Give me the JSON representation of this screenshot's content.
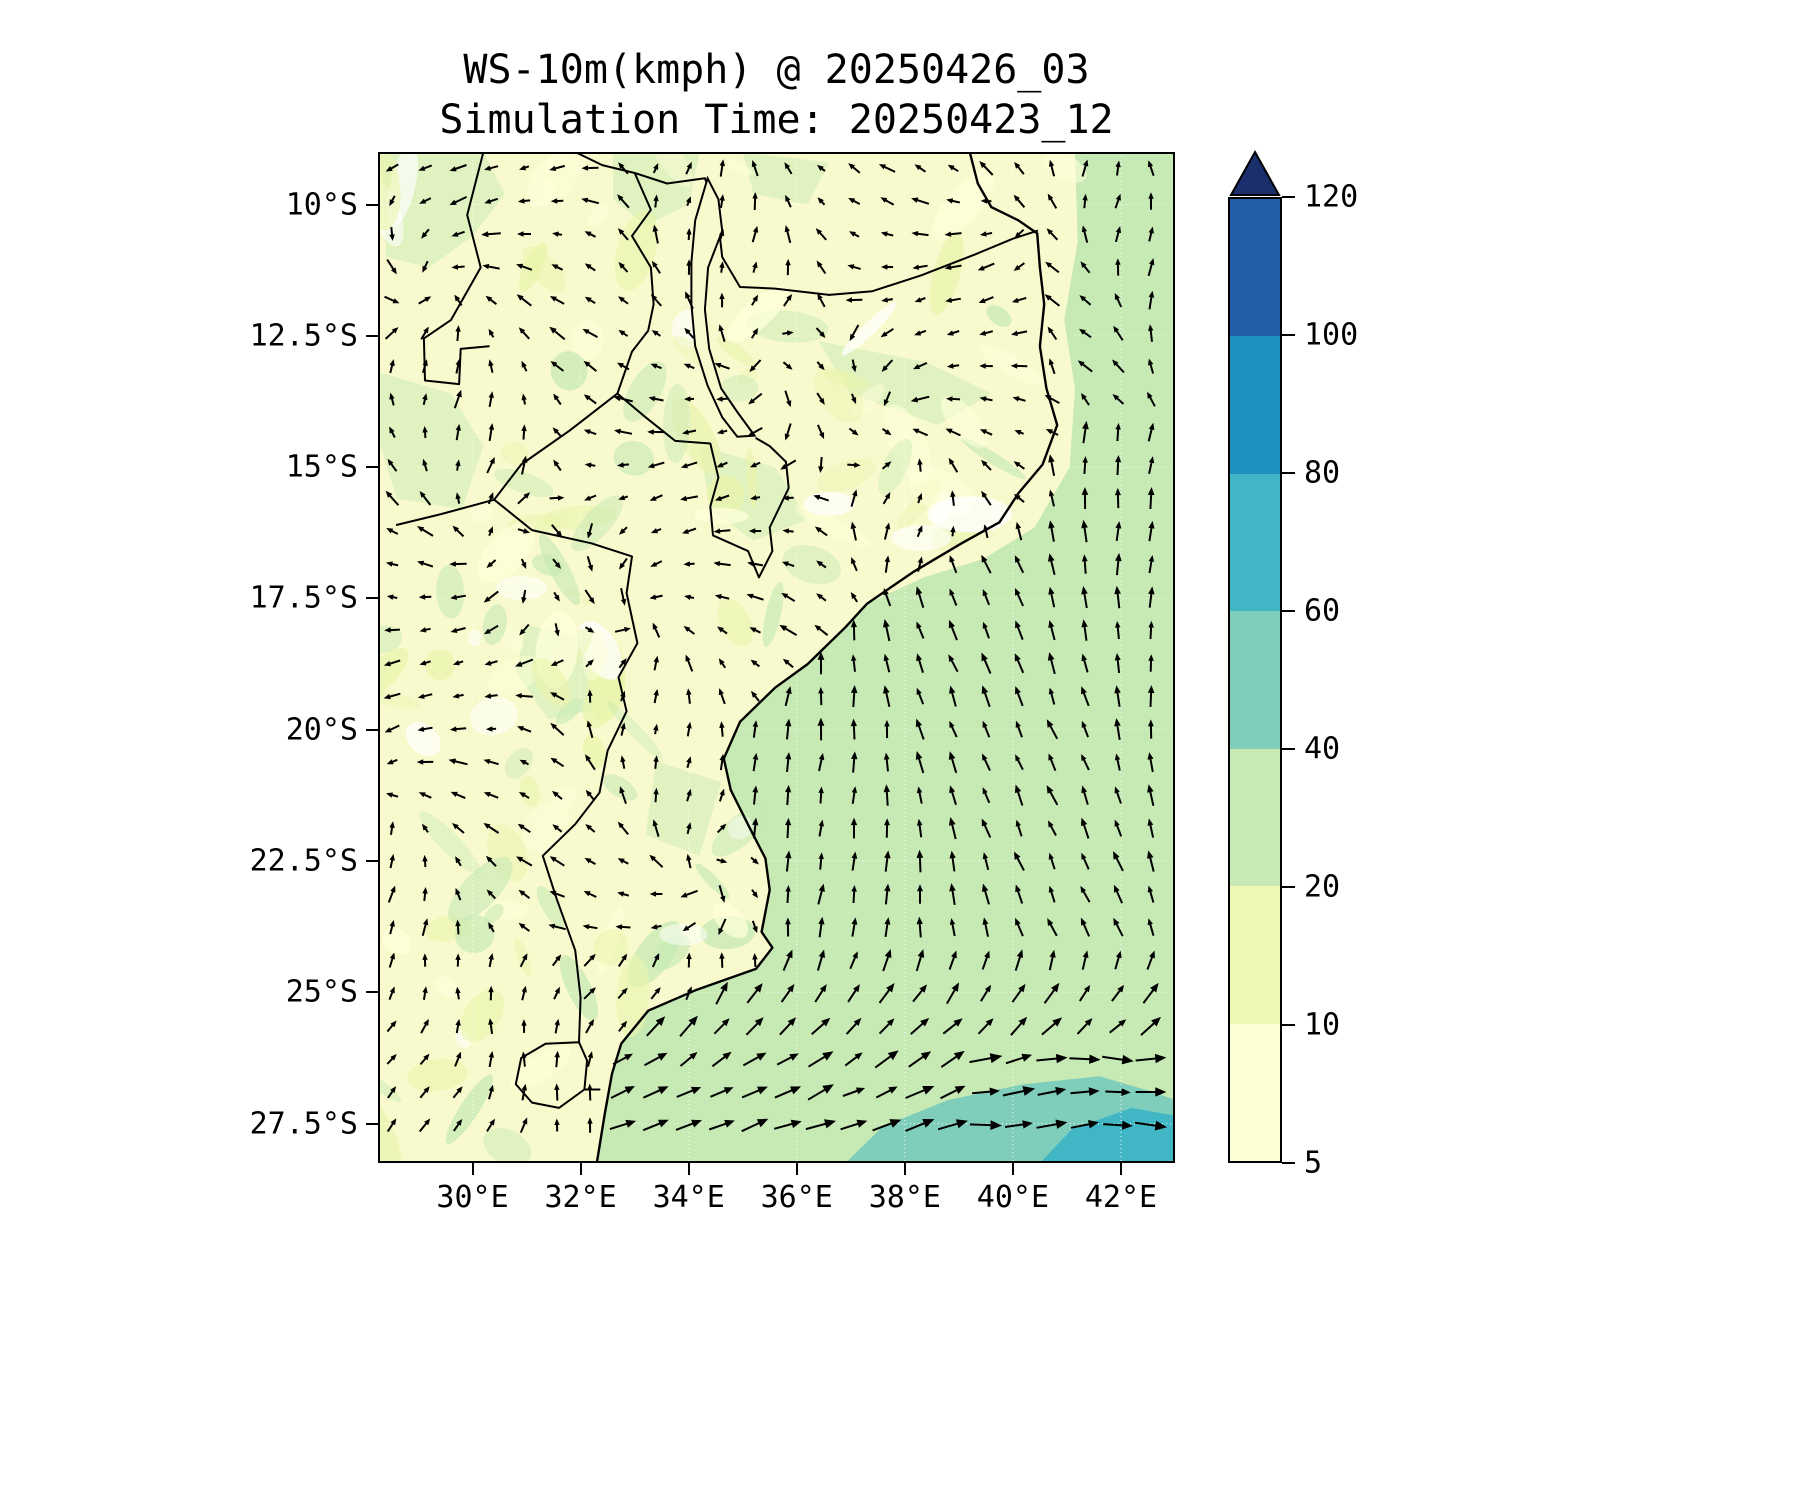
{
  "title": {
    "line1": "WS-10m(kmph) @ 20250426_03",
    "line2": "Simulation Time: 20250423_12"
  },
  "chart_data": {
    "type": "heatmap",
    "title": "WS-10m(kmph) @ 20250426_03",
    "subtitle": "Simulation Time: 20250423_12",
    "variable": "10 m wind speed",
    "units": "kmph",
    "valid_time": "20250426_03",
    "simulation_time": "20250423_12",
    "region": "Mozambique / southeast Africa and Mozambique Channel",
    "x_axis": {
      "ticks": [
        30,
        32,
        34,
        36,
        38,
        40,
        42
      ],
      "tick_labels": [
        "30°E",
        "32°E",
        "34°E",
        "36°E",
        "38°E",
        "40°E",
        "42°E"
      ],
      "range": [
        28.25,
        43.0
      ],
      "unit": "degrees east"
    },
    "y_axis": {
      "ticks": [
        -10,
        -12.5,
        -15,
        -17.5,
        -20,
        -22.5,
        -25,
        -27.5
      ],
      "tick_labels": [
        "10°S",
        "12.5°S",
        "15°S",
        "17.5°S",
        "20°S",
        "22.5°S",
        "25°S",
        "27.5°S"
      ],
      "range": [
        -28.25,
        -9.0
      ],
      "unit": "degrees (negative = south)"
    },
    "colorbar": {
      "levels": [
        5,
        10,
        20,
        40,
        60,
        80,
        100,
        120
      ],
      "tick_labels": [
        "5",
        "10",
        "20",
        "40",
        "60",
        "80",
        "100",
        "120"
      ],
      "band_colors": [
        "#ffffd6",
        "#eef8b4",
        "#c7e9b4",
        "#7fcdbb",
        "#41b6c4",
        "#1d91c0",
        "#225ea8"
      ],
      "over_arrow_color": "#1b2e6e",
      "extend": "max",
      "orientation": "vertical"
    },
    "overlays": {
      "quiver": "black 10 m wind vectors on regular grid",
      "coastlines_and_borders": "black lines",
      "graticule": "faint dotted grid at labeled ticks"
    },
    "field_summary": {
      "land": "mostly 5-20 kmph, patchy 20-40 kmph, light variable directions",
      "mozambique_channel": "20-40 kmph with arrows pointing north (southerly flow)",
      "southeast_corner": "40-80 kmph, arrows turning east-northeastward south of 25°S"
    }
  }
}
